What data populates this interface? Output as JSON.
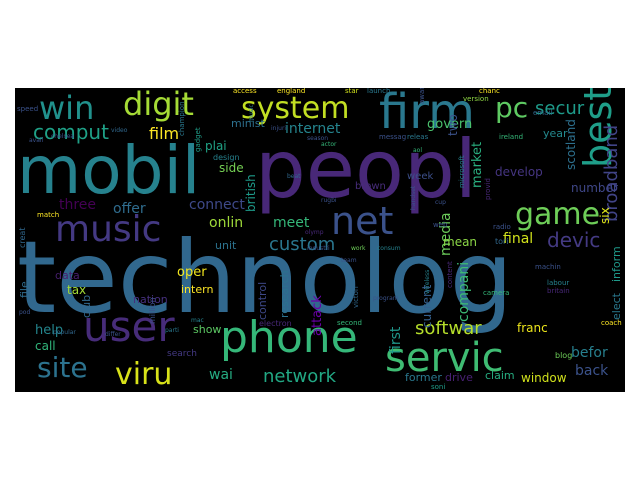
{
  "words": [
    {
      "text": "technolog",
      "color": "#31688e"
    },
    {
      "text": "peopl",
      "color": "#482878"
    },
    {
      "text": "mobil",
      "color": "#26828e"
    },
    {
      "text": "phone",
      "color": "#35b779"
    },
    {
      "text": "servic",
      "color": "#3fbc73"
    },
    {
      "text": "user",
      "color": "#472c7a"
    },
    {
      "text": "firm",
      "color": "#2a788e"
    },
    {
      "text": "system",
      "color": "#c2df23"
    },
    {
      "text": "net",
      "color": "#3b528b"
    },
    {
      "text": "music",
      "color": "#443983"
    },
    {
      "text": "game",
      "color": "#6ece58"
    },
    {
      "text": "best",
      "color": "#1f9e89"
    },
    {
      "text": "digit",
      "color": "#a5db36"
    },
    {
      "text": "win",
      "color": "#21918c"
    },
    {
      "text": "viru",
      "color": "#d8e219"
    },
    {
      "text": "site",
      "color": "#2c728e"
    },
    {
      "text": "pc",
      "color": "#5ec962"
    },
    {
      "text": "comput",
      "color": "#1fa187"
    },
    {
      "text": "softwar",
      "color": "#b5de2b"
    },
    {
      "text": "network",
      "color": "#22a884"
    },
    {
      "text": "devic",
      "color": "#443a83"
    },
    {
      "text": "secur",
      "color": "#1e9b8a"
    },
    {
      "text": "broadband",
      "color": "#414487"
    },
    {
      "text": "internet",
      "color": "#25848e"
    },
    {
      "text": "custom",
      "color": "#2a768e"
    },
    {
      "text": "media",
      "color": "#6ccd5a"
    },
    {
      "text": "film",
      "color": "#fde725"
    },
    {
      "text": "onlin",
      "color": "#9fda3a"
    },
    {
      "text": "connect",
      "color": "#3e4989"
    },
    {
      "text": "offer",
      "color": "#2f6c8e"
    },
    {
      "text": "three",
      "color": "#440154"
    },
    {
      "text": "market",
      "color": "#29af7f"
    },
    {
      "text": "compani",
      "color": "#3dbc74"
    },
    {
      "text": "final",
      "color": "#d2e21b"
    },
    {
      "text": "befor",
      "color": "#277f8e"
    },
    {
      "text": "back",
      "color": "#3b528b"
    },
    {
      "text": "wai",
      "color": "#25ac82"
    },
    {
      "text": "meet",
      "color": "#35b779"
    },
    {
      "text": "oper",
      "color": "#f1e51d"
    },
    {
      "text": "help",
      "color": "#24868e"
    },
    {
      "text": "call",
      "color": "#31b57b"
    },
    {
      "text": "window",
      "color": "#d0e11c"
    },
    {
      "text": "claim",
      "color": "#26ad81"
    },
    {
      "text": "drive",
      "color": "#482173"
    },
    {
      "text": "former",
      "color": "#2a788e"
    },
    {
      "text": "mean",
      "color": "#8bd646"
    },
    {
      "text": "franc",
      "color": "#ece51b"
    },
    {
      "text": "six",
      "color": "#dde318"
    },
    {
      "text": "number",
      "color": "#3f4788"
    },
    {
      "text": "develop",
      "color": "#453581"
    },
    {
      "text": "year",
      "color": "#23898e"
    },
    {
      "text": "govern",
      "color": "#4ac16d"
    },
    {
      "text": "minist",
      "color": "#2d708e"
    },
    {
      "text": "plai",
      "color": "#20a386"
    },
    {
      "text": "side",
      "color": "#75d054"
    },
    {
      "text": "show",
      "color": "#5cc863"
    },
    {
      "text": "tax",
      "color": "#a2da37"
    },
    {
      "text": "data",
      "color": "#481f70"
    },
    {
      "text": "unit",
      "color": "#2c738e"
    },
    {
      "text": "nation",
      "color": "#46307e"
    },
    {
      "text": "intern",
      "color": "#fde725"
    },
    {
      "text": "first",
      "color": "#1f978b"
    },
    {
      "text": "current",
      "color": "#34608d"
    },
    {
      "text": "elect",
      "color": "#2a788e"
    },
    {
      "text": "inform",
      "color": "#1f9a8a"
    },
    {
      "text": "scotland",
      "color": "#2d708e"
    },
    {
      "text": "two",
      "color": "#3b528b"
    },
    {
      "text": "british",
      "color": "#1e9b8a"
    },
    {
      "text": "week",
      "color": "#3c4f8a"
    },
    {
      "text": "design",
      "color": "#26828e"
    },
    {
      "text": "club",
      "color": "#31688e"
    },
    {
      "text": "file",
      "color": "#2f6b8e"
    },
    {
      "text": "attack",
      "color": "#6a00a8"
    },
    {
      "text": "research",
      "color": "#2c728e"
    },
    {
      "text": "control",
      "color": "#3e4989"
    },
    {
      "text": "search",
      "color": "#443983"
    },
    {
      "text": "brown",
      "color": "#472c7a"
    },
    {
      "text": "creat",
      "color": "#31688e"
    },
    {
      "text": "million",
      "color": "#3b528b"
    },
    {
      "text": "access",
      "color": "#fde725"
    },
    {
      "text": "england",
      "color": "#fde725"
    },
    {
      "text": "star",
      "color": "#d0e11c"
    },
    {
      "text": "launch",
      "color": "#2a788e"
    },
    {
      "text": "speed",
      "color": "#3b528b"
    },
    {
      "text": "ireland",
      "color": "#35b779"
    },
    {
      "text": "email",
      "color": "#31688e"
    },
    {
      "text": "version",
      "color": "#8fd744"
    },
    {
      "text": "chanc",
      "color": "#fde725"
    },
    {
      "text": "messag",
      "color": "#3b528b"
    },
    {
      "text": "releas",
      "color": "#2a788e"
    },
    {
      "text": "award",
      "color": "#3b528b"
    },
    {
      "text": "blog",
      "color": "#6ece58"
    },
    {
      "text": "labour",
      "color": "#26828e"
    },
    {
      "text": "coach",
      "color": "#fde725"
    },
    {
      "text": "britain",
      "color": "#482878"
    },
    {
      "text": "machin",
      "color": "#3b528b"
    },
    {
      "text": "soni",
      "color": "#1f9e89"
    },
    {
      "text": "camera",
      "color": "#35b779"
    },
    {
      "text": "content",
      "color": "#482878"
    },
    {
      "text": "radio",
      "color": "#3b528b"
    },
    {
      "text": "tori",
      "color": "#31688e"
    },
    {
      "text": "match",
      "color": "#fde725"
    },
    {
      "text": "popular",
      "color": "#31688e"
    },
    {
      "text": "differ",
      "color": "#3b528b"
    },
    {
      "text": "parti",
      "color": "#2a788e"
    },
    {
      "text": "mac",
      "color": "#26828e"
    },
    {
      "text": "chelsea",
      "color": "#3b528b"
    },
    {
      "text": "avail",
      "color": "#3b528b"
    },
    {
      "text": "second",
      "color": "#35b779"
    },
    {
      "text": "program",
      "color": "#3b528b"
    },
    {
      "text": "victori",
      "color": "#31688e"
    },
    {
      "text": "team",
      "color": "#3b528b"
    },
    {
      "text": "electron",
      "color": "#482878"
    },
    {
      "text": "industri",
      "color": "#3b528b"
    },
    {
      "text": "work",
      "color": "#6ece58"
    },
    {
      "text": "consum",
      "color": "#26828e"
    },
    {
      "text": "web",
      "color": "#3b528b"
    },
    {
      "text": "provid",
      "color": "#482878"
    },
    {
      "text": "microsoft",
      "color": "#26828e"
    },
    {
      "text": "rugbi",
      "color": "#3b528b"
    },
    {
      "text": "beat",
      "color": "#31688e"
    },
    {
      "text": "actor",
      "color": "#35b779"
    },
    {
      "text": "injuri",
      "color": "#3b528b"
    },
    {
      "text": "champion",
      "color": "#2a788e"
    },
    {
      "text": "gadget",
      "color": "#1f9e89"
    },
    {
      "text": "handset",
      "color": "#3b528b"
    },
    {
      "text": "wireless",
      "color": "#26828e"
    },
    {
      "text": "cup",
      "color": "#3b528b"
    },
    {
      "text": "music",
      "color": "#2a788e"
    },
    {
      "text": "video",
      "color": "#31688e"
    },
    {
      "text": "season",
      "color": "#3b528b"
    },
    {
      "text": "olymp",
      "color": "#482878"
    },
    {
      "text": "pod",
      "color": "#3b528b"
    },
    {
      "text": "aol",
      "color": "#35b779"
    }
  ]
}
